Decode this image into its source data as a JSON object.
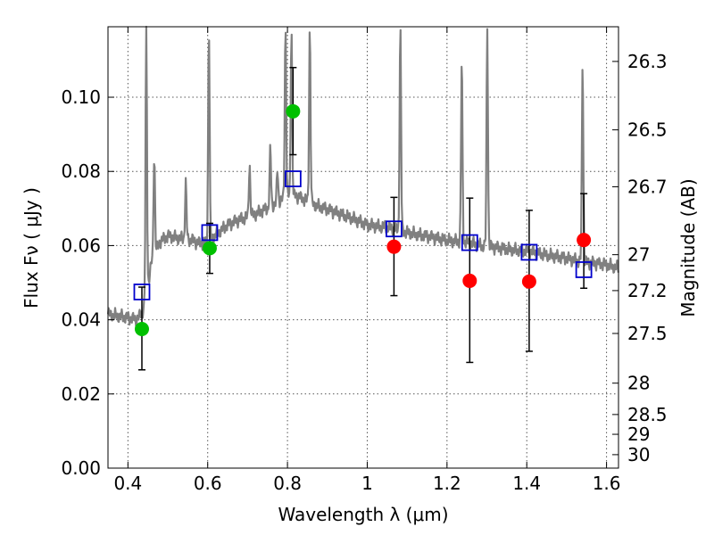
{
  "chart_data": {
    "type": "scatter",
    "title": "",
    "xlabel": "Wavelength  λ (μm)",
    "ylabel": "Flux  Fν  ( μJy )",
    "y2label": "Magnitude (AB)",
    "xlim": [
      0.35,
      1.63
    ],
    "ylim": [
      0.0,
      0.119
    ],
    "grid": true,
    "x_ticks": [
      0.4,
      0.6,
      0.8,
      1.0,
      1.2,
      1.4,
      1.6
    ],
    "x_tick_labels": [
      "0.4",
      "0.6",
      "0.8",
      "1",
      "1.2",
      "1.4",
      "1.6"
    ],
    "y_ticks": [
      0.0,
      0.02,
      0.04,
      0.06,
      0.08,
      0.1
    ],
    "y_tick_labels": [
      "0.00",
      "0.02",
      "0.04",
      "0.06",
      "0.08",
      "0.10"
    ],
    "y2_tick_labels": [
      "26.3",
      "26.5",
      "26.7",
      "27",
      "27.2",
      "27.5",
      "28",
      "28.5",
      "29",
      "30"
    ],
    "y2_tick_values": [
      26.3,
      26.5,
      26.7,
      27.0,
      27.2,
      27.5,
      28.0,
      28.5,
      29.0,
      30.0
    ],
    "colors": {
      "model": "#808080",
      "green": "#00c000",
      "red": "#ff0000",
      "square": "#0000cc",
      "errorbar": "#000000"
    },
    "series": [
      {
        "kind": "line",
        "continuum": {
          "x": [
            0.35,
            0.38,
            0.4,
            0.42,
            0.43,
            0.44,
            0.45,
            0.46,
            0.48,
            0.5,
            0.53,
            0.56,
            0.58,
            0.6,
            0.62,
            0.65,
            0.68,
            0.72,
            0.75,
            0.78,
            0.8,
            0.82,
            0.85,
            0.88,
            0.92,
            0.96,
            1.0,
            1.05,
            1.1,
            1.15,
            1.2,
            1.25,
            1.3,
            1.35,
            1.4,
            1.45,
            1.5,
            1.55,
            1.6,
            1.63
          ],
          "y": [
            0.0415,
            0.041,
            0.0405,
            0.04,
            0.041,
            0.043,
            0.049,
            0.056,
            0.061,
            0.0625,
            0.062,
            0.0615,
            0.0605,
            0.061,
            0.063,
            0.0655,
            0.067,
            0.0685,
            0.07,
            0.072,
            0.0735,
            0.0735,
            0.072,
            0.0705,
            0.069,
            0.0675,
            0.0655,
            0.065,
            0.0635,
            0.0625,
            0.0615,
            0.0608,
            0.0598,
            0.059,
            0.0585,
            0.0575,
            0.0565,
            0.0555,
            0.0548,
            0.054
          ]
        },
        "emission_lines": [
          {
            "x": 0.446,
            "peak": 0.119
          },
          {
            "x": 0.466,
            "peak": 0.085
          },
          {
            "x": 0.545,
            "peak": 0.077
          },
          {
            "x": 0.603,
            "peak": 0.119
          },
          {
            "x": 0.705,
            "peak": 0.082
          },
          {
            "x": 0.757,
            "peak": 0.086
          },
          {
            "x": 0.775,
            "peak": 0.08
          },
          {
            "x": 0.795,
            "peak": 0.119
          },
          {
            "x": 0.81,
            "peak": 0.119
          },
          {
            "x": 0.856,
            "peak": 0.119
          },
          {
            "x": 1.083,
            "peak": 0.119
          },
          {
            "x": 1.237,
            "peak": 0.11
          },
          {
            "x": 1.301,
            "peak": 0.119
          },
          {
            "x": 1.54,
            "peak": 0.11
          }
        ]
      },
      {
        "kind": "points_green",
        "x": [
          0.435,
          0.605,
          0.814
        ],
        "y": [
          0.0375,
          0.0593,
          0.0962
        ],
        "err_low": [
          0.0265,
          0.0525,
          0.0845
        ],
        "err_high": [
          0.0488,
          0.066,
          0.108
        ]
      },
      {
        "kind": "points_red",
        "x": [
          1.067,
          1.257,
          1.406,
          1.543
        ],
        "y": [
          0.0597,
          0.0505,
          0.0503,
          0.0615
        ],
        "err_low": [
          0.0465,
          0.0285,
          0.0315,
          0.0485
        ],
        "err_high": [
          0.073,
          0.0728,
          0.0695,
          0.074
        ]
      },
      {
        "kind": "squares",
        "x": [
          0.435,
          0.605,
          0.814,
          1.067,
          1.257,
          1.406,
          1.543
        ],
        "y": [
          0.0475,
          0.0635,
          0.078,
          0.0645,
          0.0608,
          0.0582,
          0.0535
        ]
      }
    ]
  }
}
